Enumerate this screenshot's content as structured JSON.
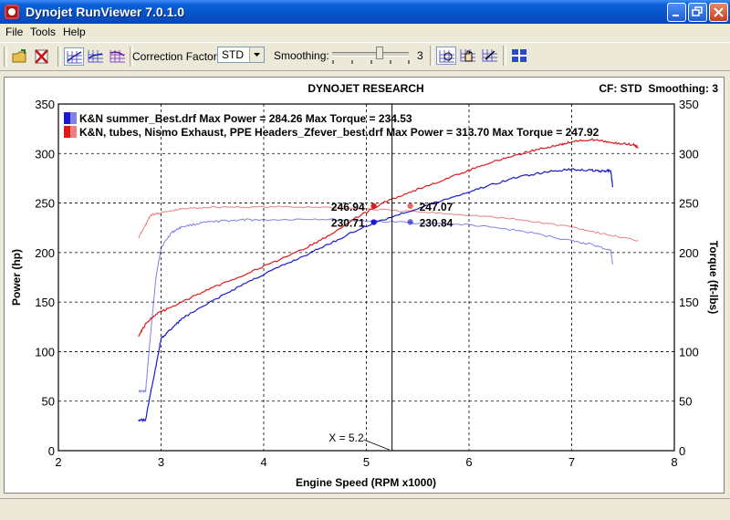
{
  "window": {
    "title": "Dynojet RunViewer 7.0.1.0"
  },
  "menu": [
    {
      "label": "File"
    },
    {
      "label": "Tools"
    },
    {
      "label": "Help"
    }
  ],
  "toolbar": {
    "correction_label": "Correction Factor:",
    "correction_value": "STD",
    "smoothing_label": "Smoothing:",
    "smoothing_value": "3"
  },
  "chart_header": {
    "title": "DYNOJET RESEARCH",
    "status": "CF: STD  Smoothing: 3"
  },
  "cursor": {
    "label": "X = 5.2",
    "x": 5.25
  },
  "chart_data": {
    "type": "line",
    "title": "DYNOJET RESEARCH",
    "xlabel": "Engine Speed (RPM x1000)",
    "ylabel": "Power (hp)",
    "y2label": "Torque (ft-lbs)",
    "xlim": [
      2,
      8
    ],
    "ylim": [
      0,
      350
    ],
    "y2lim": [
      0,
      350
    ],
    "xticks": [
      2,
      3,
      4,
      5,
      6,
      7,
      8
    ],
    "yticks": [
      0,
      50,
      100,
      150,
      200,
      250,
      300,
      350
    ],
    "grid": true,
    "legend_position": "top-left",
    "series": [
      {
        "name": "K&N summer_Best.drf Max Power = 284.26 Max Torque = 234.53",
        "color": "#1a1acc",
        "power": {
          "x": [
            2.78,
            2.85,
            2.9,
            2.95,
            3.0,
            3.05,
            3.2,
            3.5,
            3.8,
            4.1,
            4.4,
            4.7,
            5.0,
            5.3,
            5.6,
            5.9,
            6.2,
            6.5,
            6.8,
            7.0,
            7.2,
            7.3,
            7.38,
            7.4
          ],
          "y": [
            31,
            31,
            60,
            85,
            113,
            118,
            133,
            151,
            168,
            183,
            197,
            212,
            227,
            238,
            248,
            258,
            268,
            277,
            282,
            284,
            283,
            282,
            283,
            266
          ]
        },
        "torque": {
          "x": [
            2.78,
            2.85,
            2.9,
            2.95,
            3.0,
            3.1,
            3.2,
            3.4,
            3.6,
            3.8,
            4.0,
            4.5,
            5.0,
            5.5,
            6.0,
            6.5,
            7.0,
            7.2,
            7.38,
            7.4
          ],
          "y": [
            60,
            60,
            120,
            175,
            205,
            220,
            226,
            230,
            232,
            233,
            233,
            234,
            232,
            230,
            228,
            222,
            212,
            208,
            202,
            188
          ]
        }
      },
      {
        "name": "K&N, tubes, Nismo Exhaust, PPE Headers_Zfever_best.drf Max Power = 313.70 Max Torque = 247.92",
        "color": "#dd1a1a",
        "power": {
          "x": [
            2.78,
            2.85,
            2.95,
            3.1,
            3.4,
            3.7,
            4.0,
            4.3,
            4.6,
            4.9,
            5.2,
            5.5,
            5.8,
            6.1,
            6.4,
            6.7,
            6.9,
            7.0,
            7.2,
            7.4,
            7.6,
            7.65
          ],
          "y": [
            116,
            128,
            138,
            145,
            160,
            173,
            186,
            199,
            215,
            235,
            252,
            264,
            275,
            287,
            297,
            305,
            309,
            312,
            314,
            311,
            309,
            306
          ]
        },
        "torque": {
          "x": [
            2.78,
            2.85,
            2.9,
            3.0,
            3.2,
            3.5,
            4.0,
            4.5,
            5.0,
            5.5,
            6.0,
            6.5,
            7.0,
            7.3,
            7.65
          ],
          "y": [
            215,
            228,
            238,
            240,
            244,
            246,
            246,
            246,
            244,
            241,
            238,
            233,
            226,
            219,
            212
          ]
        }
      }
    ],
    "cursor_readouts": [
      {
        "text": "246.94",
        "color": "#dd1a1a",
        "side": "left"
      },
      {
        "text": "247.07",
        "color": "#dd1a1a",
        "side": "right"
      },
      {
        "text": "230.71",
        "color": "#1a1acc",
        "side": "left"
      },
      {
        "text": "230.84",
        "color": "#1a1acc",
        "side": "right"
      }
    ]
  }
}
